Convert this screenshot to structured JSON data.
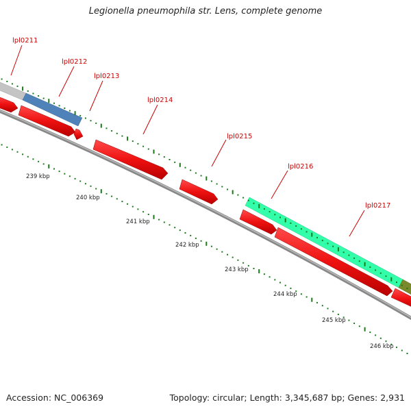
{
  "title": "Legionella pneumophila str. Lens, complete genome",
  "footer": {
    "accession": "Accession: NC_006369",
    "summary": "Topology: circular; Length: 3,345,687 bp; Genes: 2,931"
  },
  "colors": {
    "gene_label": "#cc0000",
    "cds": "#ee1111",
    "backbone": "#888888",
    "tick_outer": "#1a7a1a",
    "tick_inner": "#1a7a1a"
  },
  "genes": [
    {
      "label": "lpl0211"
    },
    {
      "label": "lpl0212"
    },
    {
      "label": "lpl0213"
    },
    {
      "label": "lpl0214"
    },
    {
      "label": "lpl0215"
    },
    {
      "label": "lpl0216"
    },
    {
      "label": "lpl0217"
    }
  ],
  "ruler": [
    "239 kbp",
    "240 kbp",
    "241 kbp",
    "242 kbp",
    "243 kbp",
    "244 kbp",
    "245 kbp",
    "246 kbp"
  ]
}
